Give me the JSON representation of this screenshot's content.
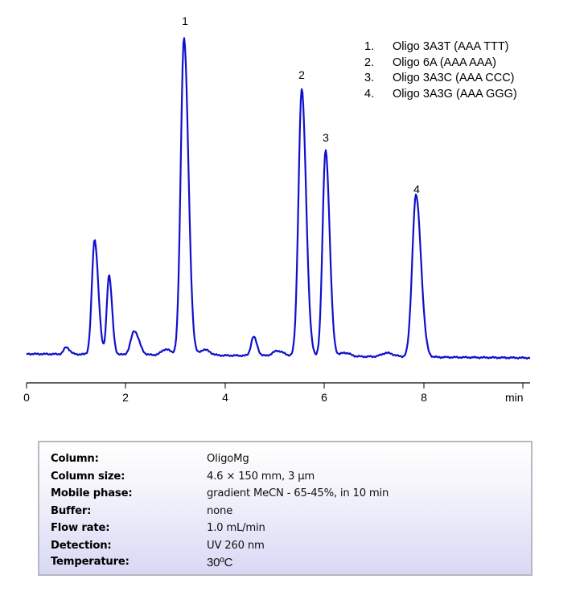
{
  "chart_data": {
    "type": "line",
    "title": "",
    "xlabel": "min",
    "ylabel": "",
    "xlim": [
      0,
      10.2
    ],
    "x_ticks": [
      0,
      2,
      4,
      6,
      8
    ],
    "x_tick_labels": [
      "0",
      "2",
      "4",
      "6",
      "8"
    ],
    "grid": false,
    "legend_position": "top-right",
    "line_color": "#1010cc",
    "baseline_signal": 0,
    "signal_scale": "relative height (0 = baseline, 1 = tallest peak)",
    "peaks": [
      {
        "label": "",
        "rt": 0.8,
        "height": 0.022,
        "width": 0.05
      },
      {
        "label": "",
        "rt": 1.37,
        "height": 0.36,
        "width": 0.055
      },
      {
        "label": "",
        "rt": 1.66,
        "height": 0.25,
        "width": 0.045
      },
      {
        "label": "",
        "rt": 2.17,
        "height": 0.075,
        "width": 0.07
      },
      {
        "label": "",
        "rt": 2.8,
        "height": 0.018,
        "width": 0.08
      },
      {
        "label": "1",
        "rt": 3.17,
        "height": 1.0,
        "width": 0.065
      },
      {
        "label": "",
        "rt": 3.58,
        "height": 0.018,
        "width": 0.08
      },
      {
        "label": "",
        "rt": 4.57,
        "height": 0.06,
        "width": 0.05
      },
      {
        "label": "",
        "rt": 5.05,
        "height": 0.016,
        "width": 0.09
      },
      {
        "label": "2",
        "rt": 5.54,
        "height": 0.84,
        "width": 0.065
      },
      {
        "label": "3",
        "rt": 6.02,
        "height": 0.65,
        "width": 0.06
      },
      {
        "label": "",
        "rt": 6.4,
        "height": 0.012,
        "width": 0.08
      },
      {
        "label": "",
        "rt": 7.25,
        "height": 0.012,
        "width": 0.1
      },
      {
        "label": "4",
        "rt": 7.84,
        "height": 0.51,
        "width": 0.075
      }
    ],
    "labeled_peaks": [
      {
        "number": "1",
        "retention_time_min": 3.17
      },
      {
        "number": "2",
        "retention_time_min": 5.54
      },
      {
        "number": "3",
        "retention_time_min": 6.02
      },
      {
        "number": "4",
        "retention_time_min": 7.84
      }
    ],
    "legend": [
      {
        "number": "1.",
        "text": "Oligo 3A3T (AAA TTT)"
      },
      {
        "number": "2.",
        "text": "Oligo 6A (AAA AAA)"
      },
      {
        "number": "3.",
        "text": "Oligo 3A3C (AAA CCC)"
      },
      {
        "number": "4.",
        "text": "Oligo 3A3G (AAA GGG)"
      }
    ]
  },
  "axis": {
    "ticks": [
      "0",
      "2",
      "4",
      "6",
      "8"
    ],
    "unit": "min"
  },
  "legend": {
    "items": [
      {
        "number": "1.",
        "text": "Oligo 3A3T (AAA TTT)"
      },
      {
        "number": "2.",
        "text": "Oligo 6A (AAA AAA)"
      },
      {
        "number": "3.",
        "text": "Oligo 3A3C (AAA CCC)"
      },
      {
        "number": "4.",
        "text": "Oligo 3A3G (AAA GGG)"
      }
    ]
  },
  "peak_labels": [
    "1",
    "2",
    "3",
    "4"
  ],
  "conditions": {
    "rows": [
      {
        "key": "Column:",
        "value": "OligoMg"
      },
      {
        "key": "Column size:",
        "value": "4.6 × 150 mm, 3 µm"
      },
      {
        "key": "Mobile phase:",
        "value": "gradient  MeCN - 65-45%, in 10 min"
      },
      {
        "key": "Buffer:",
        "value": "none"
      },
      {
        "key": "Flow rate:",
        "value": "1.0 mL/min"
      },
      {
        "key": "Detection:",
        "value": "UV 260 nm"
      },
      {
        "key": "Temperature:",
        "value": "30ºC"
      }
    ]
  }
}
